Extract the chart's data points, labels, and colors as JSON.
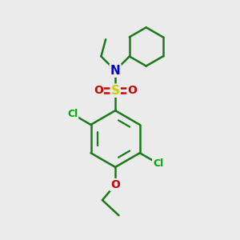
{
  "background_color": "#ebebeb",
  "atom_colors": {
    "C": "#1a7a1a",
    "N": "#0000cc",
    "S": "#cccc00",
    "O": "#cc0000",
    "Cl": "#00aa00",
    "H": "#000000"
  },
  "bond_color": "#1a7a1a",
  "bond_width": 1.8,
  "figsize": [
    3.0,
    3.0
  ],
  "dpi": 100
}
